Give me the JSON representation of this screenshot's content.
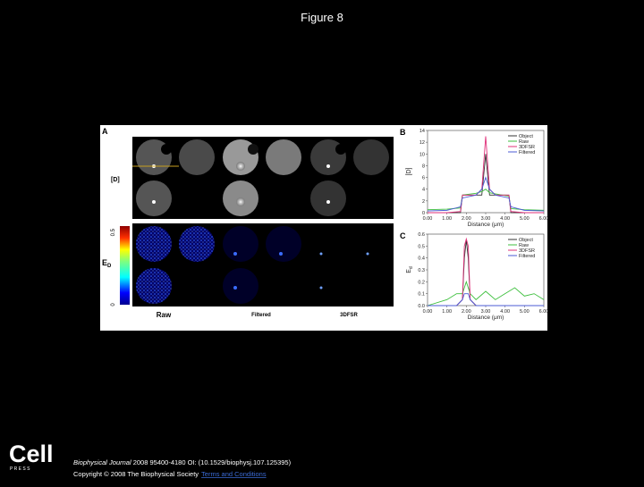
{
  "title": "Figure 8",
  "panel_a": {
    "label": "A",
    "row_label_d": "[D]",
    "ed_symbol": "E",
    "ed_subscript": "D",
    "colorbar_max": "0.5",
    "colorbar_min": "0",
    "columns": [
      "Raw",
      "Filtered",
      "3DFSR"
    ]
  },
  "chart_data": [
    {
      "type": "line",
      "panel_label": "B",
      "ylabel": "[D]",
      "xlabel": "Distance (μm)",
      "x": [
        0,
        1,
        1.7,
        1.8,
        2.5,
        2.8,
        3.0,
        3.2,
        3.5,
        4.2,
        4.3,
        5,
        6
      ],
      "series": [
        {
          "name": "Object",
          "color": "#333333",
          "values": [
            0,
            0,
            0,
            3,
            3,
            3,
            10,
            3,
            3,
            3,
            0,
            0,
            0
          ]
        },
        {
          "name": "Raw",
          "color": "#3cbf3c",
          "values": [
            0.5,
            0.6,
            0.8,
            3,
            3.3,
            3.6,
            4,
            3.4,
            3.2,
            2.8,
            0.7,
            0.5,
            0.4
          ]
        },
        {
          "name": "3DFSR",
          "color": "#e0307a",
          "values": [
            0,
            0,
            0.2,
            3,
            3,
            4,
            13,
            4,
            3,
            3,
            0.2,
            0,
            0
          ]
        },
        {
          "name": "Filtered",
          "color": "#4b5bd6",
          "values": [
            0.3,
            0.4,
            1,
            2.5,
            3,
            4,
            6,
            4,
            3,
            2.5,
            1,
            0.4,
            0.3
          ]
        }
      ],
      "xlim": [
        0,
        6
      ],
      "ylim": [
        0,
        14
      ],
      "xticks": [
        {
          "value": 0,
          "label": "0.00"
        },
        {
          "value": 1,
          "label": "1.00"
        },
        {
          "value": 2,
          "label": "2.00"
        },
        {
          "value": 3,
          "label": "3.00"
        },
        {
          "value": 4,
          "label": "4.00"
        },
        {
          "value": 5,
          "label": "5.00"
        },
        {
          "value": 6,
          "label": "6.00"
        }
      ],
      "yticks": [
        0,
        2,
        4,
        6,
        8,
        10,
        12,
        14
      ]
    },
    {
      "type": "line",
      "panel_label": "C",
      "ylabel": "E",
      "ylabel_sub": "d",
      "xlabel": "Distance (μm)",
      "x": [
        0,
        1,
        1.5,
        1.8,
        1.9,
        2.0,
        2.1,
        2.2,
        2.5,
        3,
        3.5,
        4,
        4.5,
        5,
        5.5,
        6
      ],
      "series": [
        {
          "name": "Object",
          "color": "#333333",
          "values": [
            0,
            0,
            0,
            0.05,
            0.4,
            0.55,
            0.4,
            0.05,
            0,
            0,
            0,
            0,
            0,
            0,
            0,
            0
          ]
        },
        {
          "name": "Raw",
          "color": "#3cbf3c",
          "values": [
            0,
            0.05,
            0.1,
            0.1,
            0.15,
            0.2,
            0.15,
            0.1,
            0.05,
            0.12,
            0.05,
            0.1,
            0.15,
            0.08,
            0.1,
            0.05
          ]
        },
        {
          "name": "3DFSR",
          "color": "#e0307a",
          "values": [
            0,
            0,
            0,
            0.05,
            0.5,
            0.56,
            0.5,
            0.05,
            0,
            0,
            0,
            0,
            0,
            0,
            0,
            0
          ]
        },
        {
          "name": "Filtered",
          "color": "#4b5bd6",
          "values": [
            0,
            0,
            0,
            0.05,
            0.1,
            0.1,
            0.1,
            0.05,
            0,
            0,
            0,
            0,
            0,
            0,
            0,
            0
          ]
        }
      ],
      "xlim": [
        0,
        6
      ],
      "ylim": [
        0,
        0.6
      ],
      "xticks": [
        {
          "value": 0,
          "label": "0.00"
        },
        {
          "value": 1,
          "label": "1.00"
        },
        {
          "value": 2,
          "label": "2.00"
        },
        {
          "value": 3,
          "label": "3.00"
        },
        {
          "value": 4,
          "label": "4.00"
        },
        {
          "value": 5,
          "label": "5.00"
        },
        {
          "value": 6,
          "label": "6.00"
        }
      ],
      "yticks": [
        {
          "value": 0,
          "label": "0.0"
        },
        0.1,
        0.2,
        0.3,
        0.4,
        0.5,
        0.6
      ]
    }
  ],
  "footer": {
    "logo": "Cell",
    "logo_sub": "P R E S S",
    "journal": "Biophysical Journal",
    "citation": " 2008 95400-4180 OI: (10.1529/biophysj.107.125395)",
    "copyright": "Copyright © 2008 The Biophysical Society",
    "terms": "Terms and Conditions"
  }
}
